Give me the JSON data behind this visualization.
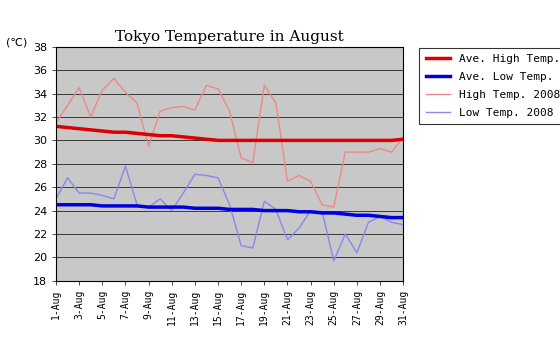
{
  "title": "Tokyo Temperature in August",
  "celsius_label": "(℃)",
  "ylim": [
    18,
    38
  ],
  "yticks": [
    18,
    20,
    22,
    24,
    26,
    28,
    30,
    32,
    34,
    36,
    38
  ],
  "days": [
    1,
    2,
    3,
    4,
    5,
    6,
    7,
    8,
    9,
    10,
    11,
    12,
    13,
    14,
    15,
    16,
    17,
    18,
    19,
    20,
    21,
    22,
    23,
    24,
    25,
    26,
    27,
    28,
    29,
    30,
    31
  ],
  "xtick_labels": [
    "1-Aug",
    "3-Aug",
    "5-Aug",
    "7-Aug",
    "9-Aug",
    "11-Aug",
    "13-Aug",
    "15-Aug",
    "17-Aug",
    "19-Aug",
    "21-Aug",
    "23-Aug",
    "25-Aug",
    "27-Aug",
    "29-Aug",
    "31-Aug"
  ],
  "xtick_positions": [
    1,
    3,
    5,
    7,
    9,
    11,
    13,
    15,
    17,
    19,
    21,
    23,
    25,
    27,
    29,
    31
  ],
  "ave_high": [
    31.2,
    31.1,
    31.0,
    30.9,
    30.8,
    30.7,
    30.7,
    30.6,
    30.5,
    30.4,
    30.4,
    30.3,
    30.2,
    30.1,
    30.0,
    30.0,
    30.0,
    30.0,
    30.0,
    30.0,
    30.0,
    30.0,
    30.0,
    30.0,
    30.0,
    30.0,
    30.0,
    30.0,
    30.0,
    30.0,
    30.1
  ],
  "ave_low": [
    24.5,
    24.5,
    24.5,
    24.5,
    24.4,
    24.4,
    24.4,
    24.4,
    24.3,
    24.3,
    24.3,
    24.3,
    24.2,
    24.2,
    24.2,
    24.1,
    24.1,
    24.1,
    24.0,
    24.0,
    24.0,
    23.9,
    23.9,
    23.8,
    23.8,
    23.7,
    23.6,
    23.6,
    23.5,
    23.4,
    23.4
  ],
  "high_2008": [
    31.5,
    33.0,
    34.5,
    32.0,
    34.3,
    35.3,
    34.1,
    33.2,
    29.5,
    32.5,
    32.8,
    32.9,
    32.6,
    34.7,
    34.4,
    32.5,
    28.5,
    28.1,
    34.7,
    33.2,
    26.5,
    27.0,
    26.5,
    24.5,
    24.3,
    29.0,
    29.0,
    29.0,
    29.3,
    29.0,
    30.3
  ],
  "low_2008": [
    25.0,
    26.8,
    25.5,
    25.5,
    25.3,
    25.0,
    27.8,
    24.5,
    24.3,
    25.0,
    24.0,
    25.5,
    27.1,
    27.0,
    26.8,
    24.5,
    21.0,
    20.8,
    24.8,
    24.1,
    21.5,
    22.5,
    24.0,
    23.9,
    19.7,
    22.0,
    20.4,
    23.0,
    23.5,
    23.0,
    22.8
  ],
  "ave_high_color": "#dd0000",
  "ave_low_color": "#0000dd",
  "high_2008_color": "#ee8888",
  "low_2008_color": "#8888ee",
  "bg_color": "#c8c8c8",
  "fig_color": "#ffffff",
  "legend_labels": [
    "Ave. High Temp.",
    "Ave. Low Temp.",
    "High Temp. 2008",
    "Low Temp. 2008"
  ],
  "ave_high_lw": 2.5,
  "ave_low_lw": 2.5,
  "high_2008_lw": 1.0,
  "low_2008_lw": 1.0,
  "title_fontsize": 11,
  "tick_fontsize": 8,
  "legend_fontsize": 8
}
